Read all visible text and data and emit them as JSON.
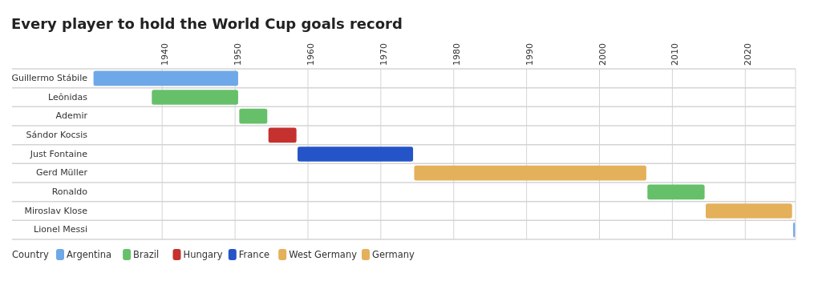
{
  "chart_data": {
    "type": "bar",
    "orientation": "horizontal",
    "title": "Every player to hold the World Cup goals record",
    "categories": [
      "Guillermo Stábile",
      "Leônidas",
      "Ademir",
      "Sándor Kocsis",
      "Just Fontaine",
      "Gerd Müller",
      "Ronaldo",
      "Miroslav Klose",
      "Lionel Messi"
    ],
    "series": [
      {
        "name": "Argentina",
        "color": "#6fa8e8",
        "values": [
          20,
          null,
          null,
          null,
          null,
          null,
          null,
          null,
          0.4
        ],
        "base": [
          1930.5,
          null,
          null,
          null,
          null,
          null,
          null,
          null,
          2026.5
        ]
      },
      {
        "name": "Brazil",
        "color": "#66c06a",
        "values": [
          null,
          12,
          4,
          null,
          null,
          null,
          8,
          null,
          null
        ],
        "base": [
          null,
          1938.5,
          1950.5,
          null,
          null,
          null,
          2006.5,
          null,
          null
        ]
      },
      {
        "name": "Hungary",
        "color": "#c5312f",
        "values": [
          null,
          null,
          null,
          4,
          null,
          null,
          null,
          null,
          null
        ],
        "base": [
          null,
          null,
          null,
          1954.5,
          null,
          null,
          null,
          null,
          null
        ]
      },
      {
        "name": "France",
        "color": "#2454c7",
        "values": [
          null,
          null,
          null,
          null,
          16,
          null,
          null,
          null,
          null
        ],
        "base": [
          null,
          null,
          null,
          null,
          1958.5,
          null,
          null,
          null,
          null
        ]
      },
      {
        "name": "West Germany",
        "color": "#e4b05a",
        "values": [
          null,
          null,
          null,
          null,
          null,
          32,
          null,
          null,
          null
        ],
        "base": [
          null,
          null,
          null,
          null,
          null,
          1974.5,
          null,
          null,
          null
        ]
      },
      {
        "name": "Germany",
        "color": "#e4b05a",
        "values": [
          null,
          null,
          null,
          null,
          null,
          null,
          null,
          12,
          null
        ],
        "base": [
          null,
          null,
          null,
          null,
          null,
          null,
          null,
          2014.5,
          null
        ]
      }
    ],
    "xlim": [
      1919.4,
      2026.9
    ],
    "xticks": [
      1940,
      1950,
      1960,
      1970,
      1980,
      1990,
      2000,
      2010,
      2020
    ],
    "grid": "x",
    "legend": "bottom",
    "legend_title": "Country"
  }
}
